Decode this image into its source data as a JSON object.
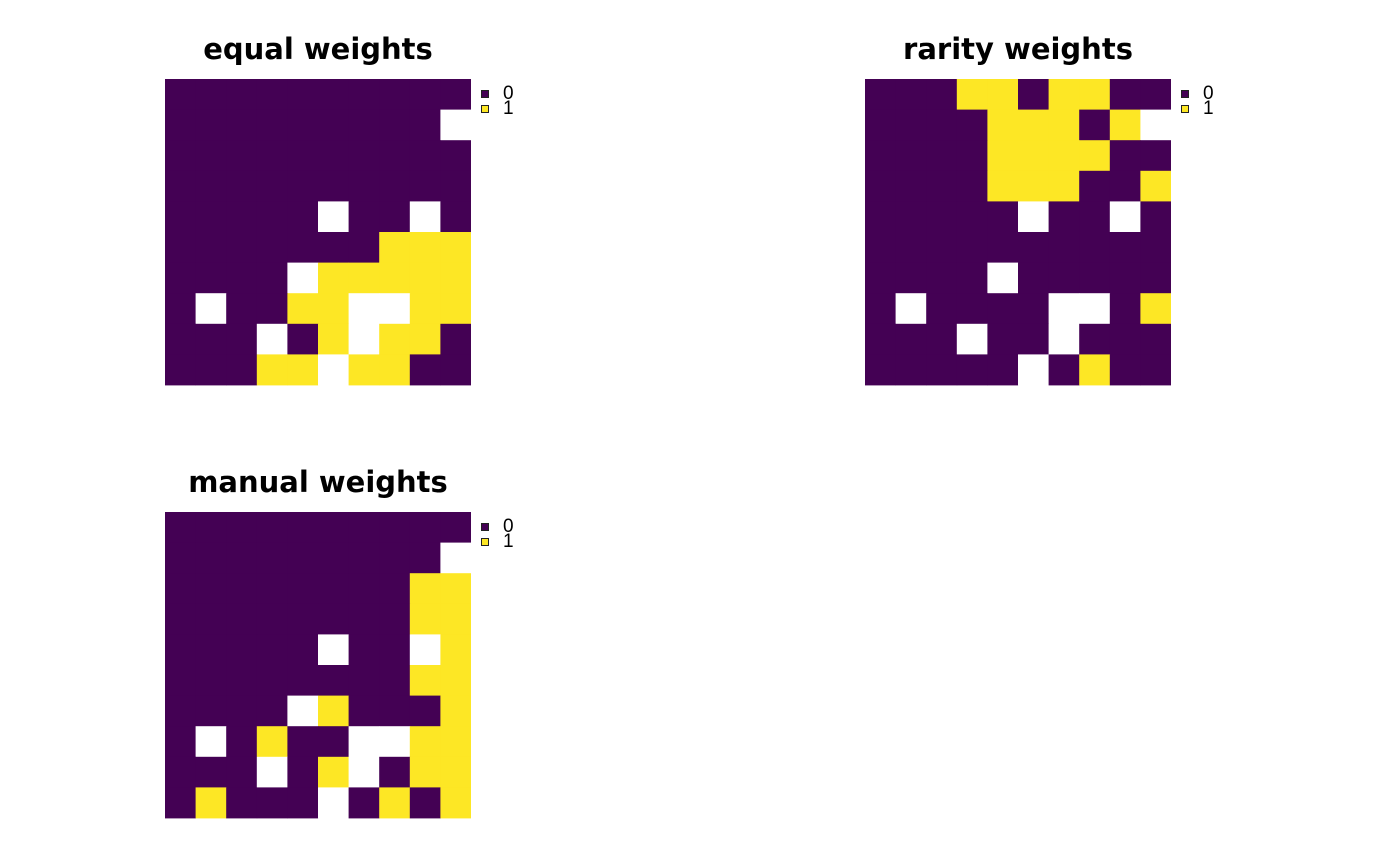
{
  "colors": {
    "0": "#440154",
    "1": "#FDE725",
    "na": "#FFFFFF"
  },
  "chart_data": [
    {
      "type": "heatmap",
      "title": "equal weights",
      "legend": {
        "position": "top-right",
        "entries": [
          "0",
          "1"
        ]
      },
      "grid": [
        [
          0,
          0,
          0,
          0,
          0,
          0,
          0,
          0,
          0,
          0
        ],
        [
          0,
          0,
          0,
          0,
          0,
          0,
          0,
          0,
          0,
          null
        ],
        [
          0,
          0,
          0,
          0,
          0,
          0,
          0,
          0,
          0,
          0
        ],
        [
          0,
          0,
          0,
          0,
          0,
          0,
          0,
          0,
          0,
          0
        ],
        [
          0,
          0,
          0,
          0,
          0,
          null,
          0,
          0,
          null,
          0
        ],
        [
          0,
          0,
          0,
          0,
          0,
          0,
          0,
          1,
          1,
          1
        ],
        [
          0,
          0,
          0,
          0,
          null,
          1,
          1,
          1,
          1,
          1
        ],
        [
          0,
          null,
          0,
          0,
          1,
          1,
          null,
          null,
          1,
          1
        ],
        [
          0,
          0,
          0,
          null,
          0,
          1,
          null,
          1,
          1,
          0
        ],
        [
          0,
          0,
          0,
          1,
          1,
          null,
          1,
          1,
          0,
          0
        ]
      ]
    },
    {
      "type": "heatmap",
      "title": "rarity weights",
      "legend": {
        "position": "top-right",
        "entries": [
          "0",
          "1"
        ]
      },
      "grid": [
        [
          0,
          0,
          0,
          1,
          1,
          0,
          1,
          1,
          0,
          0
        ],
        [
          0,
          0,
          0,
          0,
          1,
          1,
          1,
          0,
          1,
          null
        ],
        [
          0,
          0,
          0,
          0,
          1,
          1,
          1,
          1,
          0,
          0
        ],
        [
          0,
          0,
          0,
          0,
          1,
          1,
          1,
          0,
          0,
          1
        ],
        [
          0,
          0,
          0,
          0,
          0,
          null,
          0,
          0,
          null,
          0
        ],
        [
          0,
          0,
          0,
          0,
          0,
          0,
          0,
          0,
          0,
          0
        ],
        [
          0,
          0,
          0,
          0,
          null,
          0,
          0,
          0,
          0,
          0
        ],
        [
          0,
          null,
          0,
          0,
          0,
          0,
          null,
          null,
          0,
          1
        ],
        [
          0,
          0,
          0,
          null,
          0,
          0,
          null,
          0,
          0,
          0
        ],
        [
          0,
          0,
          0,
          0,
          0,
          null,
          0,
          1,
          0,
          0
        ]
      ]
    },
    {
      "type": "heatmap",
      "title": "manual weights",
      "legend": {
        "position": "top-right",
        "entries": [
          "0",
          "1"
        ]
      },
      "grid": [
        [
          0,
          0,
          0,
          0,
          0,
          0,
          0,
          0,
          0,
          0
        ],
        [
          0,
          0,
          0,
          0,
          0,
          0,
          0,
          0,
          0,
          null
        ],
        [
          0,
          0,
          0,
          0,
          0,
          0,
          0,
          0,
          1,
          1
        ],
        [
          0,
          0,
          0,
          0,
          0,
          0,
          0,
          0,
          1,
          1
        ],
        [
          0,
          0,
          0,
          0,
          0,
          null,
          0,
          0,
          null,
          1
        ],
        [
          0,
          0,
          0,
          0,
          0,
          0,
          0,
          0,
          1,
          1
        ],
        [
          0,
          0,
          0,
          0,
          null,
          1,
          0,
          0,
          0,
          1
        ],
        [
          0,
          null,
          0,
          1,
          0,
          0,
          null,
          null,
          1,
          1
        ],
        [
          0,
          0,
          0,
          null,
          0,
          1,
          null,
          0,
          1,
          1
        ],
        [
          0,
          1,
          0,
          0,
          0,
          null,
          0,
          1,
          0,
          1
        ]
      ]
    }
  ]
}
